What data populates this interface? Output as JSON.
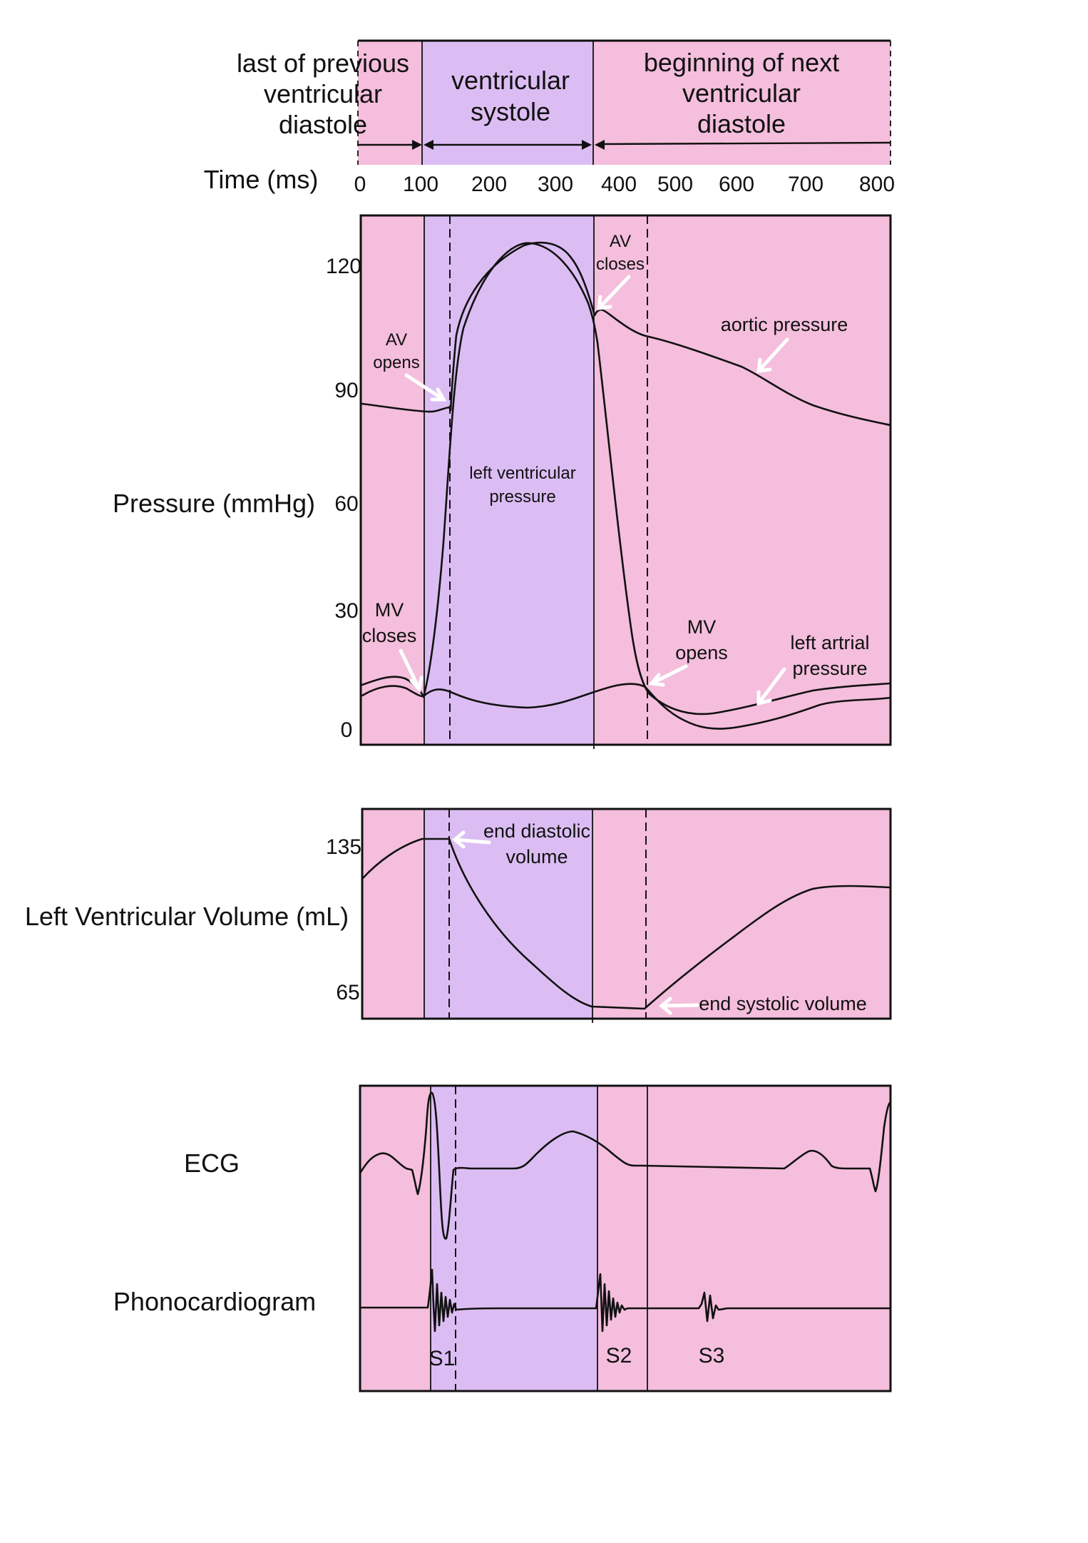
{
  "colors": {
    "diastole": "#f4bedc",
    "systole": "#dcbdf3",
    "line": "#111111",
    "arrow": "#ffffff"
  },
  "phases": {
    "previous_diastole": "last of previous\nventricular\ndiastole",
    "systole": "ventricular\nsystole",
    "next_diastole": "beginning of next\nventricular\ndiastole"
  },
  "time_axis": {
    "label": "Time (ms)",
    "ticks": [
      "0",
      "100",
      "200",
      "300",
      "400",
      "500",
      "600",
      "700",
      "800"
    ]
  },
  "pressure_panel": {
    "label": "Pressure (mmHg)",
    "ticks": [
      "120",
      "90",
      "60",
      "30",
      "0"
    ],
    "annotations": {
      "av_opens": "AV\nopens",
      "av_closes": "AV\ncloses",
      "aortic_pressure": "aortic pressure",
      "left_ventricular_pressure": "left ventricular\npressure",
      "mv_closes": "MV\ncloses",
      "mv_opens": "MV\nopens",
      "left_atrial_pressure": "left artrial\npressure"
    }
  },
  "volume_panel": {
    "label": "Left Ventricular Volume (mL)",
    "ticks": [
      "135",
      "65"
    ],
    "annotations": {
      "end_diastolic_volume": "end diastolic\nvolume",
      "end_systolic_volume": "end systolic volume"
    }
  },
  "ecg_panel": {
    "ecg_label": "ECG",
    "phono_label": "Phonocardiogram",
    "sounds": [
      "S1",
      "S2",
      "S3"
    ]
  }
}
